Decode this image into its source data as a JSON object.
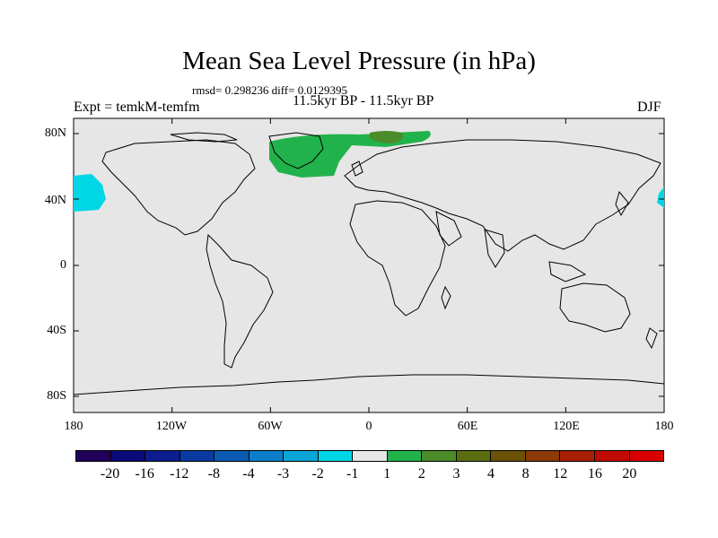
{
  "title": "Mean Sea Level Pressure (in hPa)",
  "stats": "rmsd= 0.298236 diff= 0.0129395",
  "period": "11.5kyr BP - 11.5kyr BP",
  "experiment": "Expt = temkM-temfm",
  "season": "DJF",
  "map": {
    "background_color": "#e6e6e6",
    "coastline_color": "#000000",
    "lat_labels": [
      "80N",
      "40N",
      "0",
      "40S",
      "80S"
    ],
    "lon_labels": [
      "180",
      "120W",
      "60W",
      "0",
      "60E",
      "120E",
      "180"
    ],
    "anomaly_regions": [
      {
        "name": "north-atlantic-positive",
        "level": "1 to 2",
        "color": "#22b24c"
      },
      {
        "name": "scandinavia-positive",
        "level": "2 to 3",
        "color": "#4a8c2a"
      },
      {
        "name": "north-pacific-negative",
        "level": "-2 to -1",
        "color": "#00d6e6"
      }
    ]
  },
  "colorbar": {
    "labels": [
      "-20",
      "-16",
      "-12",
      "-8",
      "-4",
      "-3",
      "-2",
      "-1",
      "1",
      "2",
      "3",
      "4",
      "8",
      "12",
      "16",
      "20"
    ],
    "colors": [
      "#21005a",
      "#0a0a78",
      "#0c1e8e",
      "#0a3aa0",
      "#0a5ab4",
      "#0c7ec8",
      "#0aa6d6",
      "#00d6e6",
      "#e6e6e6",
      "#22b24c",
      "#4a8c2a",
      "#5a6e10",
      "#6a5208",
      "#8c3a06",
      "#a82004",
      "#c00a04",
      "#d80000"
    ]
  }
}
